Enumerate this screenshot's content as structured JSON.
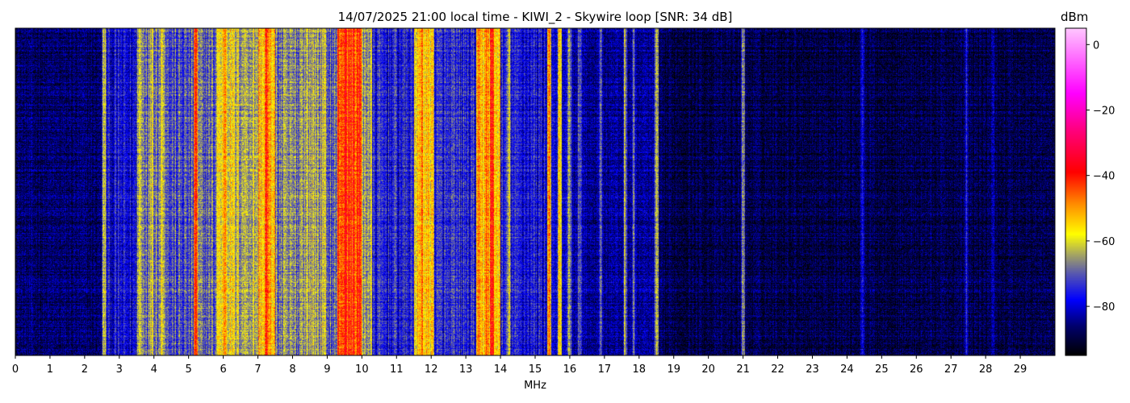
{
  "chart_data": {
    "type": "heatmap",
    "title": "14/07/2025 21:00 local time - KIWI_2 - Skywire loop [SNR: 34 dB]",
    "xlabel": "MHz",
    "xlim": [
      0,
      30
    ],
    "xticks": [
      0,
      1,
      2,
      3,
      4,
      5,
      6,
      7,
      8,
      9,
      10,
      11,
      12,
      13,
      14,
      15,
      16,
      17,
      18,
      19,
      20,
      21,
      22,
      23,
      24,
      25,
      26,
      27,
      28,
      29
    ],
    "colorbar": {
      "label": "dBm",
      "range": [
        -95,
        5
      ],
      "ticks": [
        0,
        -20,
        -40,
        -60,
        -80
      ],
      "colormap": [
        {
          "v": -95,
          "c": "#000000"
        },
        {
          "v": -86,
          "c": "#00006e"
        },
        {
          "v": -78,
          "c": "#0000ff"
        },
        {
          "v": -70,
          "c": "#5858b0"
        },
        {
          "v": -64,
          "c": "#a8a860"
        },
        {
          "v": -58,
          "c": "#ffff00"
        },
        {
          "v": -49,
          "c": "#ff9000"
        },
        {
          "v": -39,
          "c": "#ff0000"
        },
        {
          "v": -26,
          "c": "#ff0080"
        },
        {
          "v": -15,
          "c": "#ff00ff"
        },
        {
          "v": 5,
          "c": "#ffc8ff"
        }
      ]
    },
    "bands_mhz_dbm": [
      [
        0,
        2.5,
        -87
      ],
      [
        2.5,
        3.5,
        -79
      ],
      [
        3.5,
        4.4,
        -66
      ],
      [
        4.4,
        5.2,
        -72
      ],
      [
        5.2,
        5.8,
        -70
      ],
      [
        5.8,
        6.3,
        -58
      ],
      [
        6.3,
        7.0,
        -63
      ],
      [
        7.0,
        7.5,
        -54
      ],
      [
        7.5,
        8.2,
        -68
      ],
      [
        8.2,
        9.0,
        -64
      ],
      [
        9.0,
        9.3,
        -70
      ],
      [
        9.3,
        10.0,
        -43
      ],
      [
        10.0,
        10.3,
        -64
      ],
      [
        10.3,
        11.5,
        -76
      ],
      [
        11.5,
        12.1,
        -56
      ],
      [
        12.1,
        13.3,
        -76
      ],
      [
        13.3,
        14.0,
        -54
      ],
      [
        14.0,
        15.3,
        -77
      ],
      [
        15.3,
        16.1,
        -80
      ],
      [
        16.1,
        18.5,
        -84
      ],
      [
        18.5,
        30,
        -89
      ]
    ],
    "carriers_mhz_dbm": [
      [
        2.57,
        -60
      ],
      [
        3.6,
        -58
      ],
      [
        3.95,
        -56
      ],
      [
        4.25,
        -55
      ],
      [
        5.2,
        -40
      ],
      [
        6.05,
        -45
      ],
      [
        7.25,
        -40
      ],
      [
        7.45,
        -50
      ],
      [
        9.5,
        -38
      ],
      [
        9.75,
        -40
      ],
      [
        11.75,
        -45
      ],
      [
        11.95,
        -50
      ],
      [
        13.6,
        -42
      ],
      [
        13.75,
        -38
      ],
      [
        14.25,
        -60
      ],
      [
        15.4,
        -45
      ],
      [
        15.7,
        -55
      ],
      [
        16.0,
        -62
      ],
      [
        16.3,
        -64
      ],
      [
        16.9,
        -68
      ],
      [
        17.6,
        -64
      ],
      [
        17.85,
        -70
      ],
      [
        18.5,
        -62
      ],
      [
        21.0,
        -64
      ],
      [
        24.45,
        -72
      ],
      [
        27.45,
        -76
      ],
      [
        28.2,
        -78
      ]
    ]
  }
}
